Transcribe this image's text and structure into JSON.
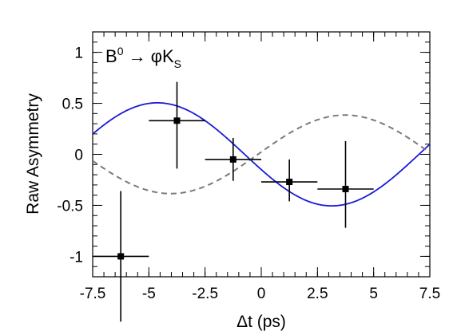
{
  "chart_data": {
    "type": "scatter",
    "xlabel": "Δt (ps)",
    "ylabel": "Raw Asymmetry",
    "xlim": [
      -7.5,
      7.5
    ],
    "ylim": [
      -1.2,
      1.2
    ],
    "x_ticks": [
      -7.5,
      -5,
      -2.5,
      0,
      2.5,
      5,
      7.5
    ],
    "x_tick_labels": [
      "-7.5",
      "-5",
      "-2.5",
      "0",
      "2.5",
      "5",
      "7.5"
    ],
    "y_ticks": [
      -1,
      -0.5,
      0,
      0.5,
      1
    ],
    "y_tick_labels": [
      "-1",
      "-0.5",
      "0",
      "0.5",
      "1"
    ],
    "grid": false,
    "annotation": {
      "base": "B",
      "sup": "0",
      "arrow": " → ",
      "phi": "φ",
      "k": "K",
      "sub": "S"
    },
    "points": [
      {
        "x": -6.25,
        "y": -1.0,
        "xerr": 1.25,
        "yerr_low": 0.64,
        "yerr_high": 0.64
      },
      {
        "x": -3.75,
        "y": 0.33,
        "xerr": 1.25,
        "yerr_low": 0.47,
        "yerr_high": 0.38
      },
      {
        "x": -1.25,
        "y": -0.05,
        "xerr": 1.25,
        "yerr_low": 0.21,
        "yerr_high": 0.21
      },
      {
        "x": 1.25,
        "y": -0.27,
        "xerr": 1.25,
        "yerr_low": 0.19,
        "yerr_high": 0.22
      },
      {
        "x": 3.75,
        "y": -0.34,
        "xerr": 1.25,
        "yerr_low": 0.38,
        "yerr_high": 0.47
      }
    ],
    "curves": [
      {
        "style": "solid",
        "color": "#1a1ad6",
        "amplitude": -0.505,
        "omega": 0.405,
        "phase": 0.3
      },
      {
        "style": "dashed",
        "color": "#7a7a7a",
        "amplitude": 0.385,
        "omega": 0.405,
        "phase": 0.06
      }
    ]
  }
}
